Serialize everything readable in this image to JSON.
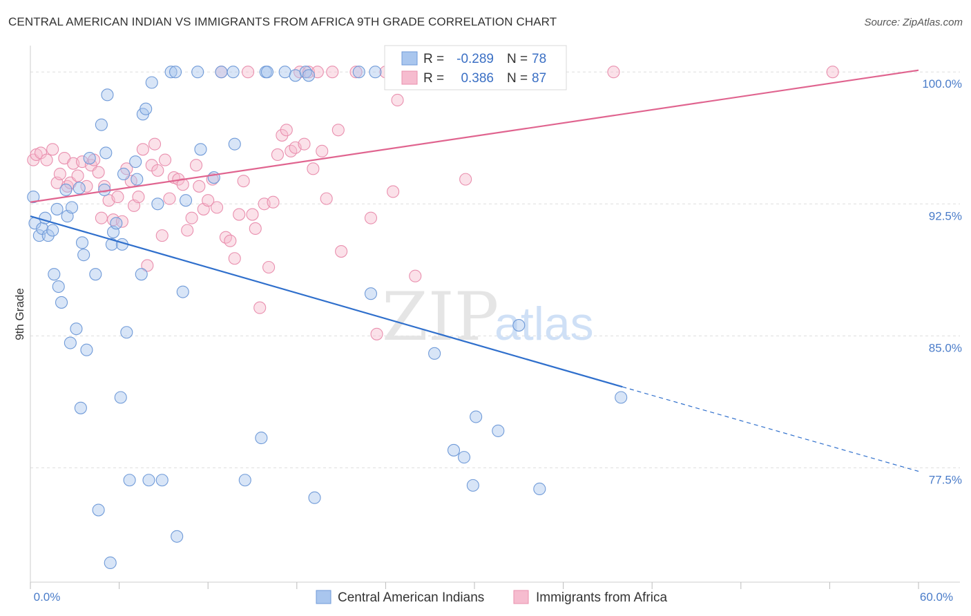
{
  "title": "CENTRAL AMERICAN INDIAN VS IMMIGRANTS FROM AFRICA 9TH GRADE CORRELATION CHART",
  "source": "Source: ZipAtlas.com",
  "watermark": {
    "zip": "ZIP",
    "atlas": "atlas"
  },
  "colors": {
    "blue_fill": "#a9c6ee",
    "blue_stroke": "#6f9ad8",
    "blue_line": "#2f6fcc",
    "pink_fill": "#f6bccf",
    "pink_stroke": "#e98fae",
    "pink_line": "#e0648f",
    "axis_text": "#4a7cc9",
    "grid": "#dddddd"
  },
  "stats": {
    "r_label": "R =",
    "n_label": "N =",
    "blue": {
      "r": "-0.289",
      "n": "78"
    },
    "pink": {
      "r": "0.386",
      "n": "87"
    }
  },
  "chart_data": {
    "type": "scatter",
    "xlabel": "",
    "ylabel": "9th Grade",
    "xlim": [
      0,
      60
    ],
    "ylim": [
      71.0,
      101.5
    ],
    "x_tick_labels": [
      {
        "value": 0,
        "label": "0.0%"
      },
      {
        "value": 60,
        "label": "60.0%"
      }
    ],
    "y_tick_labels": [
      {
        "value": 100,
        "label": "100.0%"
      },
      {
        "value": 92.5,
        "label": "92.5%"
      },
      {
        "value": 85,
        "label": "85.0%"
      },
      {
        "value": 77.5,
        "label": "77.5%"
      }
    ],
    "x_minor_ticks": [
      0,
      6,
      12,
      18,
      24,
      30,
      36,
      42,
      48,
      54,
      60
    ],
    "grid": true,
    "legend_position": "bottom",
    "series": [
      {
        "name": "Central American Indians",
        "color": "#a9c6ee",
        "trend": {
          "x0": 0,
          "y0": 91.8,
          "x1": 40,
          "y1": 82.1,
          "dash_x1": 60,
          "dash_y1": 77.3
        },
        "points": [
          [
            0.2,
            92.9
          ],
          [
            0.3,
            91.4
          ],
          [
            0.6,
            90.7
          ],
          [
            0.8,
            91.1
          ],
          [
            1.0,
            91.7
          ],
          [
            1.2,
            90.7
          ],
          [
            1.5,
            91.0
          ],
          [
            1.8,
            92.2
          ],
          [
            1.6,
            88.5
          ],
          [
            1.9,
            87.8
          ],
          [
            2.1,
            86.9
          ],
          [
            2.4,
            93.3
          ],
          [
            2.5,
            91.8
          ],
          [
            2.8,
            92.3
          ],
          [
            2.7,
            84.6
          ],
          [
            3.1,
            85.4
          ],
          [
            3.3,
            93.4
          ],
          [
            3.4,
            80.9
          ],
          [
            3.5,
            90.3
          ],
          [
            3.6,
            89.6
          ],
          [
            3.8,
            84.2
          ],
          [
            4.0,
            95.1
          ],
          [
            4.4,
            88.5
          ],
          [
            4.6,
            75.1
          ],
          [
            4.8,
            97.0
          ],
          [
            5.0,
            93.3
          ],
          [
            5.1,
            95.4
          ],
          [
            5.2,
            98.7
          ],
          [
            5.4,
            72.1
          ],
          [
            5.5,
            90.2
          ],
          [
            5.6,
            90.9
          ],
          [
            5.8,
            91.4
          ],
          [
            6.1,
            81.5
          ],
          [
            6.2,
            90.2
          ],
          [
            6.3,
            94.2
          ],
          [
            6.5,
            85.2
          ],
          [
            6.7,
            76.8
          ],
          [
            7.1,
            94.9
          ],
          [
            7.2,
            93.9
          ],
          [
            7.5,
            88.5
          ],
          [
            7.6,
            97.6
          ],
          [
            7.8,
            97.9
          ],
          [
            8.2,
            99.4
          ],
          [
            8.0,
            76.8
          ],
          [
            8.6,
            92.5
          ],
          [
            8.9,
            76.8
          ],
          [
            9.5,
            100.0
          ],
          [
            9.8,
            100.0
          ],
          [
            9.9,
            73.6
          ],
          [
            10.3,
            87.5
          ],
          [
            10.5,
            92.7
          ],
          [
            11.3,
            100.0
          ],
          [
            11.5,
            95.6
          ],
          [
            12.4,
            94.0
          ],
          [
            12.9,
            100.0
          ],
          [
            13.7,
            100.0
          ],
          [
            13.8,
            95.9
          ],
          [
            14.5,
            76.8
          ],
          [
            15.6,
            79.2
          ],
          [
            15.9,
            100.0
          ],
          [
            16.0,
            100.0
          ],
          [
            17.2,
            100.0
          ],
          [
            17.9,
            99.8
          ],
          [
            18.6,
            100.0
          ],
          [
            18.8,
            99.8
          ],
          [
            19.2,
            75.8
          ],
          [
            23.0,
            87.4
          ],
          [
            23.3,
            100.0
          ],
          [
            22.2,
            100.0
          ],
          [
            27.3,
            84.0
          ],
          [
            28.6,
            78.5
          ],
          [
            29.3,
            78.1
          ],
          [
            30.1,
            80.4
          ],
          [
            29.9,
            76.5
          ],
          [
            31.6,
            79.6
          ],
          [
            33.0,
            85.6
          ],
          [
            34.4,
            76.3
          ],
          [
            39.9,
            81.5
          ]
        ]
      },
      {
        "name": "Immigrants from Africa",
        "color": "#f6bccf",
        "trend": {
          "x0": 0,
          "y0": 92.6,
          "x1": 60,
          "y1": 100.1
        },
        "points": [
          [
            0.2,
            95.0
          ],
          [
            0.4,
            95.3
          ],
          [
            0.7,
            95.4
          ],
          [
            1.1,
            95.0
          ],
          [
            1.5,
            95.6
          ],
          [
            1.8,
            93.7
          ],
          [
            2.0,
            94.2
          ],
          [
            2.3,
            95.1
          ],
          [
            2.5,
            93.5
          ],
          [
            2.7,
            93.7
          ],
          [
            2.9,
            94.8
          ],
          [
            3.2,
            94.1
          ],
          [
            3.5,
            94.9
          ],
          [
            3.8,
            93.5
          ],
          [
            4.1,
            94.7
          ],
          [
            4.3,
            95.0
          ],
          [
            4.6,
            94.3
          ],
          [
            4.8,
            91.7
          ],
          [
            5.0,
            93.5
          ],
          [
            5.3,
            92.7
          ],
          [
            5.6,
            91.6
          ],
          [
            5.9,
            92.9
          ],
          [
            6.2,
            91.5
          ],
          [
            6.5,
            94.5
          ],
          [
            6.8,
            93.8
          ],
          [
            7.0,
            92.4
          ],
          [
            7.3,
            92.9
          ],
          [
            7.6,
            95.6
          ],
          [
            7.9,
            89.0
          ],
          [
            8.2,
            94.7
          ],
          [
            8.4,
            95.9
          ],
          [
            8.6,
            94.4
          ],
          [
            8.9,
            90.7
          ],
          [
            9.1,
            95.0
          ],
          [
            9.4,
            92.8
          ],
          [
            9.7,
            94.0
          ],
          [
            10.0,
            93.9
          ],
          [
            10.3,
            93.6
          ],
          [
            10.6,
            91.0
          ],
          [
            10.9,
            91.7
          ],
          [
            11.2,
            94.7
          ],
          [
            11.4,
            93.5
          ],
          [
            11.7,
            92.2
          ],
          [
            12.0,
            92.7
          ],
          [
            12.3,
            93.9
          ],
          [
            12.6,
            92.3
          ],
          [
            12.9,
            100.0
          ],
          [
            13.2,
            90.6
          ],
          [
            13.5,
            90.4
          ],
          [
            13.8,
            89.4
          ],
          [
            14.1,
            91.9
          ],
          [
            14.4,
            93.8
          ],
          [
            14.7,
            100.0
          ],
          [
            15.0,
            91.9
          ],
          [
            15.2,
            91.1
          ],
          [
            15.5,
            86.6
          ],
          [
            15.8,
            92.5
          ],
          [
            16.1,
            88.9
          ],
          [
            16.4,
            92.6
          ],
          [
            16.7,
            95.3
          ],
          [
            17.0,
            96.4
          ],
          [
            17.3,
            96.7
          ],
          [
            17.6,
            95.5
          ],
          [
            17.9,
            95.7
          ],
          [
            18.2,
            100.0
          ],
          [
            18.5,
            95.9
          ],
          [
            18.8,
            100.0
          ],
          [
            19.1,
            94.5
          ],
          [
            19.4,
            100.0
          ],
          [
            19.7,
            95.5
          ],
          [
            20.0,
            92.8
          ],
          [
            20.4,
            100.0
          ],
          [
            21.0,
            89.8
          ],
          [
            20.8,
            96.7
          ],
          [
            22.0,
            100.0
          ],
          [
            23.0,
            91.7
          ],
          [
            23.4,
            85.1
          ],
          [
            24.0,
            100.0
          ],
          [
            24.5,
            93.2
          ],
          [
            24.8,
            98.4
          ],
          [
            26.0,
            88.4
          ],
          [
            29.4,
            93.9
          ],
          [
            32.0,
            100.0
          ],
          [
            34.0,
            100.0
          ],
          [
            35.0,
            100.0
          ],
          [
            39.4,
            100.0
          ],
          [
            54.2,
            100.0
          ]
        ]
      }
    ]
  }
}
